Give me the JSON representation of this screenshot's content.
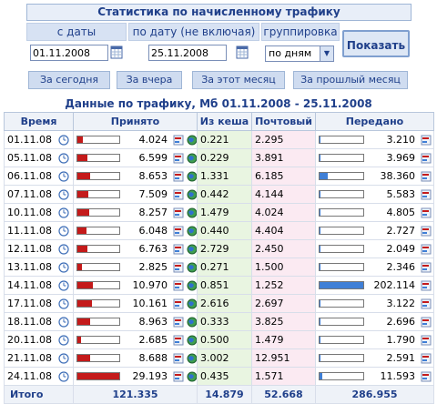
{
  "filter": {
    "title": "Статистика по начисленному трафику",
    "from_label": "с даты",
    "to_label": "по дату (не включая)",
    "group_label": "группировка",
    "from_value": "01.11.2008",
    "to_value": "25.11.2008",
    "group_value": "по дням",
    "show_button": "Показать",
    "quick": [
      "За сегодня",
      "За вчера",
      "За этот месяц",
      "За прошлый месяц"
    ]
  },
  "table": {
    "title": "Данные по трафику, Мб 01.11.2008 - 25.11.2008",
    "headers": {
      "time": "Время",
      "received": "Принято",
      "cache": "Из кеша",
      "mail": "Почтовый",
      "sent": "Передано"
    },
    "rows": [
      {
        "date": "01.11.08",
        "received": "4.024",
        "cache": "0.221",
        "mail": "2.295",
        "sent": "3.210",
        "rf": 0.14,
        "sf": 0.02
      },
      {
        "date": "05.11.08",
        "received": "6.599",
        "cache": "0.229",
        "mail": "3.891",
        "sent": "3.969",
        "rf": 0.23,
        "sf": 0.02
      },
      {
        "date": "06.11.08",
        "received": "8.653",
        "cache": "1.331",
        "mail": "6.185",
        "sent": "38.360",
        "rf": 0.3,
        "sf": 0.19
      },
      {
        "date": "07.11.08",
        "received": "7.509",
        "cache": "0.442",
        "mail": "4.144",
        "sent": "5.583",
        "rf": 0.26,
        "sf": 0.03
      },
      {
        "date": "10.11.08",
        "received": "8.257",
        "cache": "1.479",
        "mail": "4.024",
        "sent": "4.805",
        "rf": 0.28,
        "sf": 0.02
      },
      {
        "date": "11.11.08",
        "received": "6.048",
        "cache": "0.440",
        "mail": "4.404",
        "sent": "2.727",
        "rf": 0.21,
        "sf": 0.01
      },
      {
        "date": "12.11.08",
        "received": "6.763",
        "cache": "2.729",
        "mail": "2.450",
        "sent": "2.049",
        "rf": 0.23,
        "sf": 0.01
      },
      {
        "date": "13.11.08",
        "received": "2.825",
        "cache": "0.271",
        "mail": "1.500",
        "sent": "2.346",
        "rf": 0.1,
        "sf": 0.01
      },
      {
        "date": "14.11.08",
        "received": "10.970",
        "cache": "0.851",
        "mail": "1.252",
        "sent": "202.114",
        "rf": 0.38,
        "sf": 1.0
      },
      {
        "date": "17.11.08",
        "received": "10.161",
        "cache": "2.616",
        "mail": "2.697",
        "sent": "3.122",
        "rf": 0.35,
        "sf": 0.02
      },
      {
        "date": "18.11.08",
        "received": "8.963",
        "cache": "0.333",
        "mail": "3.825",
        "sent": "2.696",
        "rf": 0.31,
        "sf": 0.01
      },
      {
        "date": "20.11.08",
        "received": "2.685",
        "cache": "0.500",
        "mail": "1.479",
        "sent": "1.790",
        "rf": 0.09,
        "sf": 0.01
      },
      {
        "date": "21.11.08",
        "received": "8.688",
        "cache": "3.002",
        "mail": "12.951",
        "sent": "2.591",
        "rf": 0.3,
        "sf": 0.01
      },
      {
        "date": "24.11.08",
        "received": "29.193",
        "cache": "0.435",
        "mail": "1.571",
        "sent": "11.593",
        "rf": 1.0,
        "sf": 0.06
      }
    ],
    "total": {
      "label": "Итого",
      "received": "121.335",
      "cache": "14.879",
      "mail": "52.668",
      "sent": "286.955"
    }
  }
}
